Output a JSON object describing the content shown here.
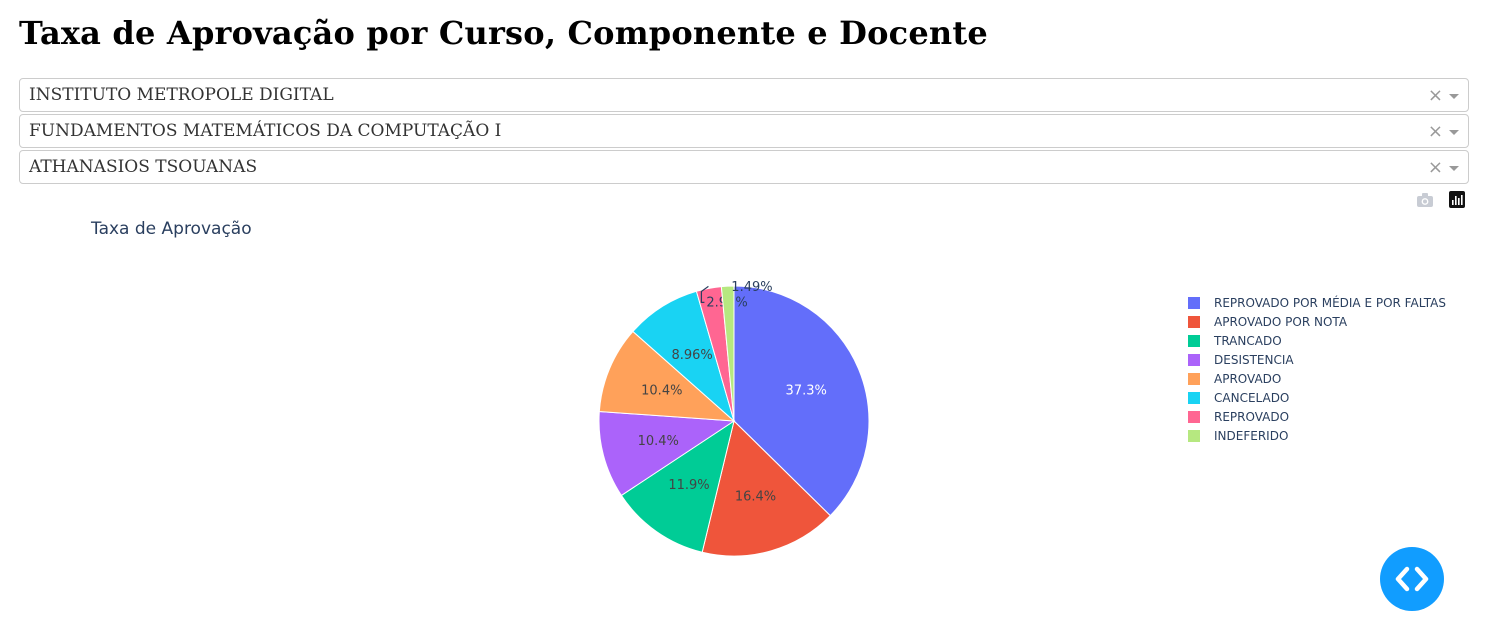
{
  "page_title": "Taxa de Aprovação por Curso, Componente e Docente",
  "filters": {
    "unit": "INSTITUTO METROPOLE DIGITAL",
    "course_component": "FUNDAMENTOS MATEMÁTICOS DA COMPUTAÇÃO I",
    "teacher": "ATHANASIOS TSOUANAS",
    "clear_glyph": "×"
  },
  "toolbar": {
    "icons": [
      "camera-icon",
      "plotly-logo-icon"
    ]
  },
  "chart_data": {
    "type": "pie",
    "title": "Taxa de Aprovação",
    "legend_position": "right",
    "slices": [
      {
        "label": "REPROVADO POR MÉDIA E POR FALTAS",
        "percent": 37.3,
        "text": "37.3%",
        "color": "#636efa"
      },
      {
        "label": "APROVADO POR NOTA",
        "percent": 16.4,
        "text": "16.4%",
        "color": "#ef553b"
      },
      {
        "label": "TRANCADO",
        "percent": 11.9,
        "text": "11.9%",
        "color": "#00cc96"
      },
      {
        "label": "DESISTENCIA",
        "percent": 10.4,
        "text": "10.4%",
        "color": "#ab63fa"
      },
      {
        "label": "APROVADO",
        "percent": 10.4,
        "text": "10.4%",
        "color": "#ffa15a"
      },
      {
        "label": "CANCELADO",
        "percent": 8.96,
        "text": "8.96%",
        "color": "#19d3f3"
      },
      {
        "label": "REPROVADO",
        "percent": 2.99,
        "text": "2.99%",
        "color": "#ff6692"
      },
      {
        "label": "INDEFERIDO",
        "percent": 1.49,
        "text": "1.49%",
        "color": "#b6e880"
      }
    ]
  }
}
